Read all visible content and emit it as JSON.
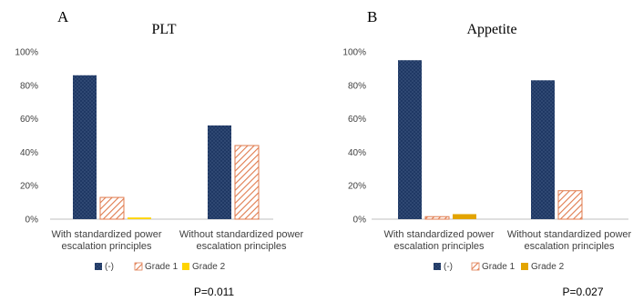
{
  "chart_data": [
    {
      "type": "bar",
      "panel_label": "A",
      "title": "PLT",
      "categories": [
        "With standardized power escalation principles",
        "Without standardized power escalation principles"
      ],
      "category_lines": [
        [
          "With standardized power",
          "escalation principles"
        ],
        [
          "Without standardized power",
          "escalation principles"
        ]
      ],
      "series": [
        {
          "name": "(-)",
          "values": [
            86,
            56
          ]
        },
        {
          "name": "Grade 1",
          "values": [
            13,
            44
          ]
        },
        {
          "name": "Grade 2",
          "values": [
            1,
            0
          ]
        }
      ],
      "yticks": [
        "0%",
        "20%",
        "40%",
        "60%",
        "80%",
        "100%"
      ],
      "ylim": [
        0,
        100
      ],
      "grid": false,
      "legend_position": "bottom",
      "annotation": "P=0.011"
    },
    {
      "type": "bar",
      "panel_label": "B",
      "title": "Appetite",
      "categories": [
        "With standardized power escalation principles",
        "Without standardized power escalation principles"
      ],
      "category_lines": [
        [
          "With standardized power",
          "escalation principles"
        ],
        [
          "Without standardized power",
          "escalation principles"
        ]
      ],
      "series": [
        {
          "name": "(-)",
          "values": [
            95,
            83
          ]
        },
        {
          "name": "Grade 1",
          "values": [
            1.5,
            17
          ]
        },
        {
          "name": "Grade 2",
          "values": [
            3,
            0
          ]
        }
      ],
      "yticks": [
        "0%",
        "20%",
        "40%",
        "60%",
        "80%",
        "100%"
      ],
      "ylim": [
        0,
        100
      ],
      "grid": false,
      "legend_position": "bottom",
      "annotation": "P=0.027"
    }
  ],
  "colors": {
    "dark_blue": "#1f3864",
    "dot": "#6d86ad",
    "hatch": "#e07b4e",
    "grade2_panel_a": "#ffd400",
    "grade2_panel_b": "#e3a400",
    "axis": "#bfbfbf",
    "text": "#404040"
  }
}
